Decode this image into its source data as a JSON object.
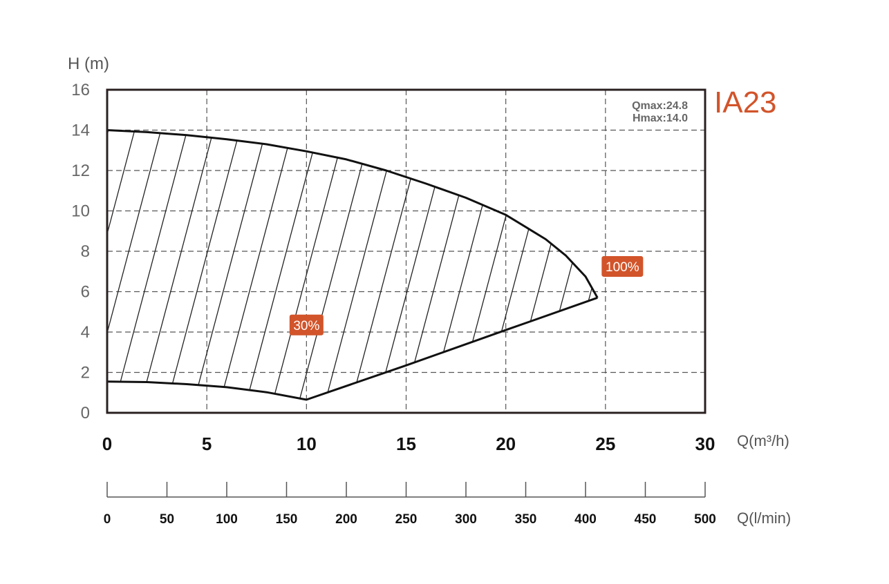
{
  "chart_data": {
    "type": "area",
    "model": "IA23",
    "ylabel": "H (m)",
    "xlabel": "Q(m³/h)",
    "xlabel_secondary": "Q(l/min)",
    "xlim": [
      0,
      30
    ],
    "ylim": [
      0,
      16
    ],
    "x_ticks": [
      "0",
      "5",
      "10",
      "15",
      "20",
      "25",
      "30"
    ],
    "y_ticks": [
      "0",
      "2",
      "4",
      "6",
      "8",
      "10",
      "12",
      "14",
      "16"
    ],
    "secondary_ticks": [
      "0",
      "50",
      "100",
      "150",
      "200",
      "250",
      "300",
      "350",
      "400",
      "450",
      "500"
    ],
    "secondary_range": [
      0,
      500
    ],
    "grid": true,
    "annotations": {
      "qmax": "Qmax:24.8",
      "hmax": "Hmax:14.0"
    },
    "colors": {
      "accent": "#d2542a",
      "frame": "#2a2020",
      "grid": "#555555"
    },
    "series": [
      {
        "name": "100%",
        "x": [
          0,
          2,
          4,
          6,
          8,
          10,
          12,
          14,
          16,
          18,
          20,
          22,
          23,
          24,
          24.6
        ],
        "y": [
          14.0,
          13.9,
          13.75,
          13.55,
          13.3,
          12.95,
          12.55,
          12.0,
          11.35,
          10.65,
          9.8,
          8.6,
          7.8,
          6.75,
          5.7
        ]
      },
      {
        "name": "30%",
        "x": [
          0,
          2,
          4,
          6,
          8,
          10,
          15,
          20,
          24.6
        ],
        "y": [
          1.55,
          1.52,
          1.42,
          1.27,
          1.02,
          0.65,
          2.35,
          4.1,
          5.7
        ]
      }
    ]
  }
}
